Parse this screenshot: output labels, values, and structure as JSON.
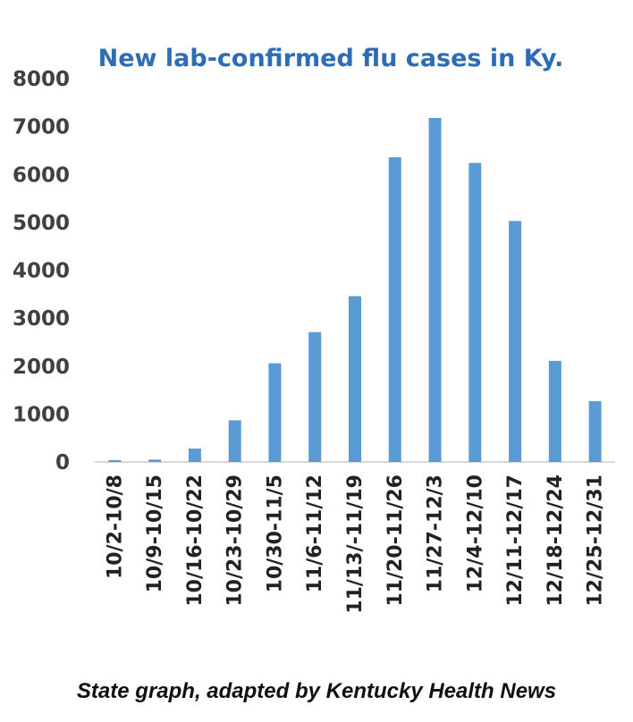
{
  "chart_data": {
    "type": "bar",
    "title": "New lab-confirmed flu cases in Ky.",
    "categories": [
      "10/2-10/8",
      "10/9-10/15",
      "10/16-10/22",
      "10/23-10/29",
      "10/30-11/5",
      "11/6-11/12",
      "11/13/-11/19",
      "11/20-11/26",
      "11/27-12/3",
      "12/4-12/10",
      "12/11-12/17",
      "12/18-12/24",
      "12/25-12/31"
    ],
    "values": [
      40,
      50,
      280,
      870,
      2060,
      2710,
      3460,
      6360,
      7180,
      6240,
      5030,
      2110,
      1270
    ],
    "ylim": [
      0,
      8000
    ],
    "yticks": [
      0,
      1000,
      2000,
      3000,
      4000,
      5000,
      6000,
      7000,
      8000
    ],
    "xlabel": "",
    "ylabel": "",
    "grid": false,
    "bar_color": "#5b9bd5"
  },
  "caption": "State graph, adapted by Kentucky Health News"
}
